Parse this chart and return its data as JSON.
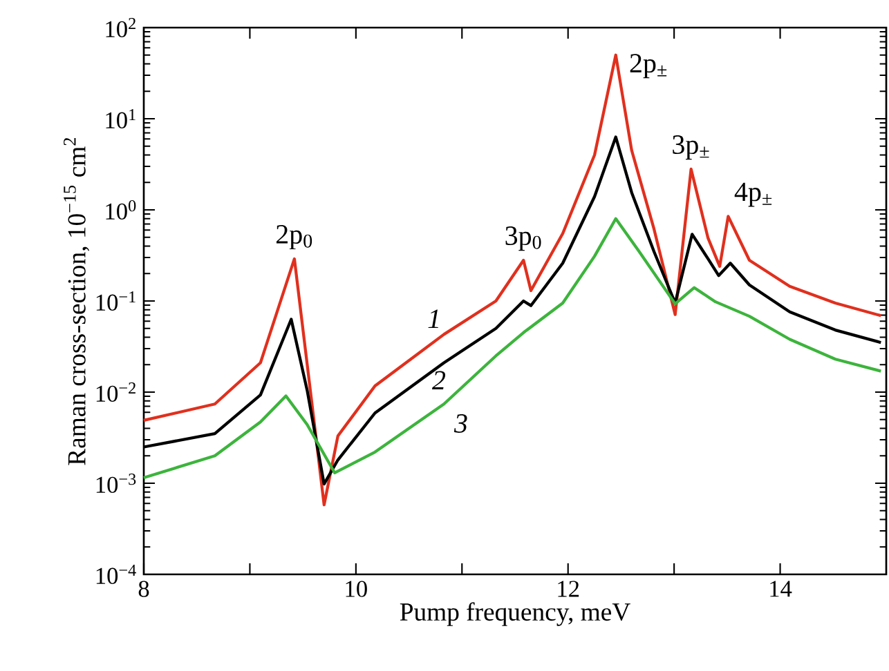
{
  "chart_data": {
    "type": "line",
    "xlabel": "Pump frequency, meV",
    "ylabel": "Raman cross-section, 10$^{−15}$ cm$^{2}$",
    "log": "y",
    "xlim": [
      8,
      15
    ],
    "ylim": [
      0.0001,
      100
    ],
    "xticks": [
      8,
      {
        "value": 9,
        "label": null
      },
      10,
      {
        "value": 11,
        "label": null
      },
      12,
      {
        "value": 13,
        "label": null
      },
      14
    ],
    "yticks": [
      {
        "value": 0.0001,
        "label": "10$^{−4}$"
      },
      {
        "value": 0.001,
        "label": "10$^{−3}$"
      },
      {
        "value": 0.01,
        "label": "10$^{−2}$"
      },
      {
        "value": 0.1,
        "label": "10$^{−1}$"
      },
      {
        "value": 1,
        "label": "10$^{0}$"
      },
      {
        "value": 10,
        "label": "10$^{1}$"
      },
      {
        "value": 100,
        "label": "10$^{2}$"
      }
    ],
    "grid": false,
    "legend": false,
    "marker": "none",
    "line_style": "solid",
    "series": [
      {
        "name": "*1*",
        "color": "#e0301e",
        "x": [
          8.0,
          8.67,
          9.1,
          9.42,
          9.57,
          9.7,
          9.83,
          10.18,
          10.83,
          11.32,
          11.58,
          11.65,
          11.95,
          12.25,
          12.45,
          12.6,
          12.81,
          13.01,
          13.16,
          13.32,
          13.43,
          13.51,
          13.71,
          14.09,
          14.52,
          14.95
        ],
        "values": [
          0.0049,
          0.0074,
          0.021,
          0.29,
          0.0105,
          0.00058,
          0.0033,
          0.0117,
          0.043,
          0.1,
          0.28,
          0.13,
          0.55,
          4.0,
          50,
          4.5,
          0.62,
          0.071,
          2.8,
          0.49,
          0.24,
          0.85,
          0.28,
          0.145,
          0.095,
          0.069
        ]
      },
      {
        "name": "*2*",
        "color": "#000000",
        "x": [
          8.0,
          8.67,
          9.1,
          9.39,
          9.54,
          9.7,
          9.83,
          10.18,
          10.83,
          11.32,
          11.58,
          11.65,
          11.95,
          12.25,
          12.45,
          12.6,
          12.81,
          13.01,
          13.17,
          13.32,
          13.42,
          13.53,
          13.71,
          14.09,
          14.52,
          14.95
        ],
        "values": [
          0.0025,
          0.0035,
          0.0093,
          0.063,
          0.0105,
          0.00098,
          0.0018,
          0.0059,
          0.021,
          0.05,
          0.1,
          0.089,
          0.26,
          1.4,
          6.3,
          1.55,
          0.35,
          0.095,
          0.54,
          0.29,
          0.19,
          0.26,
          0.15,
          0.076,
          0.048,
          0.035
        ]
      },
      {
        "name": "*3*",
        "color": "#3cb43c",
        "x": [
          8.0,
          8.67,
          9.1,
          9.34,
          9.54,
          9.8,
          10.18,
          10.83,
          11.32,
          11.58,
          11.95,
          12.25,
          12.45,
          12.67,
          13.01,
          13.19,
          13.39,
          13.71,
          14.09,
          14.52,
          14.95
        ],
        "values": [
          0.00115,
          0.002,
          0.0047,
          0.0091,
          0.0044,
          0.0013,
          0.0022,
          0.0074,
          0.025,
          0.045,
          0.095,
          0.31,
          0.8,
          0.35,
          0.093,
          0.14,
          0.098,
          0.068,
          0.038,
          0.023,
          0.017
        ]
      }
    ],
    "annotations": [
      {
        "text": "2p$_{0}$",
        "x": 9.42,
        "y": 0.29
      },
      {
        "text": "3p$_{0}$",
        "x": 11.58,
        "y": 0.28
      },
      {
        "text": "2p$_{±}$",
        "x": 12.45,
        "y": 50
      },
      {
        "text": "3p$_{±}$",
        "x": 13.16,
        "y": 2.8
      },
      {
        "text": "4p$_{±}$",
        "x": 13.51,
        "y": 0.85
      }
    ]
  }
}
